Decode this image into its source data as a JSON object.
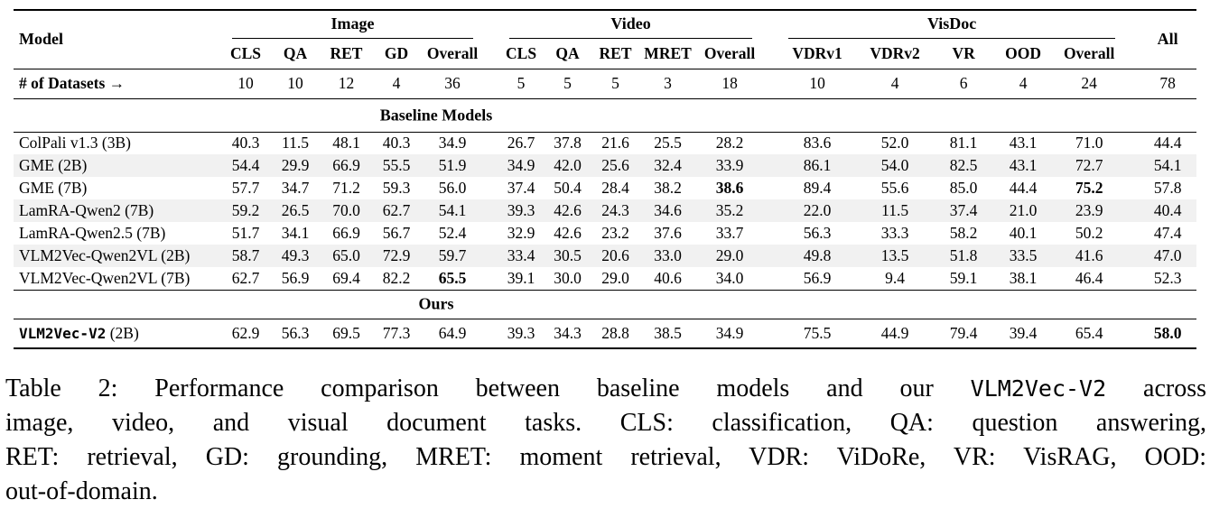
{
  "table": {
    "corner_header": "Model",
    "all_header": "All",
    "groups": [
      {
        "label": "Image",
        "subs": [
          "CLS",
          "QA",
          "RET",
          "GD",
          "Overall"
        ]
      },
      {
        "label": "Video",
        "subs": [
          "CLS",
          "QA",
          "RET",
          "MRET",
          "Overall"
        ]
      },
      {
        "label": "VisDoc",
        "subs": [
          "VDRv1",
          "VDRv2",
          "VR",
          "OOD",
          "Overall"
        ]
      }
    ],
    "datasets_row": {
      "label": "# of Datasets →",
      "values": [
        "10",
        "10",
        "12",
        "4",
        "36",
        "5",
        "5",
        "5",
        "3",
        "18",
        "10",
        "4",
        "6",
        "4",
        "24",
        "78"
      ]
    },
    "sections": [
      {
        "title": "Baseline Models",
        "rows": [
          {
            "model": "ColPali v1.3 (3B)",
            "mono": false,
            "values": [
              "40.3",
              "11.5",
              "48.1",
              "40.3",
              "34.9",
              "26.7",
              "37.8",
              "21.6",
              "25.5",
              "28.2",
              "83.6",
              "52.0",
              "81.1",
              "43.1",
              "71.0",
              "44.4"
            ],
            "bold": []
          },
          {
            "model": "GME (2B)",
            "mono": false,
            "values": [
              "54.4",
              "29.9",
              "66.9",
              "55.5",
              "51.9",
              "34.9",
              "42.0",
              "25.6",
              "32.4",
              "33.9",
              "86.1",
              "54.0",
              "82.5",
              "43.1",
              "72.7",
              "54.1"
            ],
            "bold": []
          },
          {
            "model": "GME (7B)",
            "mono": false,
            "values": [
              "57.7",
              "34.7",
              "71.2",
              "59.3",
              "56.0",
              "37.4",
              "50.4",
              "28.4",
              "38.2",
              "38.6",
              "89.4",
              "55.6",
              "85.0",
              "44.4",
              "75.2",
              "57.8"
            ],
            "bold": [
              9,
              14
            ]
          },
          {
            "model": "LamRA-Qwen2 (7B)",
            "mono": false,
            "values": [
              "59.2",
              "26.5",
              "70.0",
              "62.7",
              "54.1",
              "39.3",
              "42.6",
              "24.3",
              "34.6",
              "35.2",
              "22.0",
              "11.5",
              "37.4",
              "21.0",
              "23.9",
              "40.4"
            ],
            "bold": []
          },
          {
            "model": "LamRA-Qwen2.5 (7B)",
            "mono": false,
            "values": [
              "51.7",
              "34.1",
              "66.9",
              "56.7",
              "52.4",
              "32.9",
              "42.6",
              "23.2",
              "37.6",
              "33.7",
              "56.3",
              "33.3",
              "58.2",
              "40.1",
              "50.2",
              "47.4"
            ],
            "bold": []
          },
          {
            "model": "VLM2Vec-Qwen2VL (2B)",
            "mono": false,
            "values": [
              "58.7",
              "49.3",
              "65.0",
              "72.9",
              "59.7",
              "33.4",
              "30.5",
              "20.6",
              "33.0",
              "29.0",
              "49.8",
              "13.5",
              "51.8",
              "33.5",
              "41.6",
              "47.0"
            ],
            "bold": []
          },
          {
            "model": "VLM2Vec-Qwen2VL (7B)",
            "mono": false,
            "values": [
              "62.7",
              "56.9",
              "69.4",
              "82.2",
              "65.5",
              "39.1",
              "30.0",
              "29.0",
              "40.6",
              "34.0",
              "56.9",
              "9.4",
              "59.1",
              "38.1",
              "46.4",
              "52.3"
            ],
            "bold": [
              4
            ]
          }
        ]
      },
      {
        "title": "Ours",
        "rows": [
          {
            "model": "VLM2Vec-V2",
            "model_suffix": " (2B)",
            "mono": true,
            "values": [
              "62.9",
              "56.3",
              "69.5",
              "77.3",
              "64.9",
              "39.3",
              "34.3",
              "28.8",
              "38.5",
              "34.9",
              "75.5",
              "44.9",
              "79.4",
              "39.4",
              "65.4",
              "58.0"
            ],
            "bold": [
              15
            ]
          }
        ]
      }
    ]
  },
  "caption": {
    "lines": [
      [
        {
          "t": "Table 2:  Performance comparison between baseline models and our "
        },
        {
          "t": "VLM2Vec-V2",
          "mono": true
        },
        {
          "t": " across"
        }
      ],
      [
        {
          "t": "image, video, and visual document tasks.  CLS: classification, QA: question answering,"
        }
      ],
      [
        {
          "t": "RET: retrieval, GD: grounding, MRET: moment retrieval, VDR: ViDoRe, VR: VisRAG, OOD:"
        }
      ],
      [
        {
          "t": "out-of-domain."
        }
      ]
    ]
  },
  "colors": {
    "background": "#ffffff",
    "text": "#000000",
    "rule": "#000000",
    "row_stripe": "#f1f1f1"
  }
}
